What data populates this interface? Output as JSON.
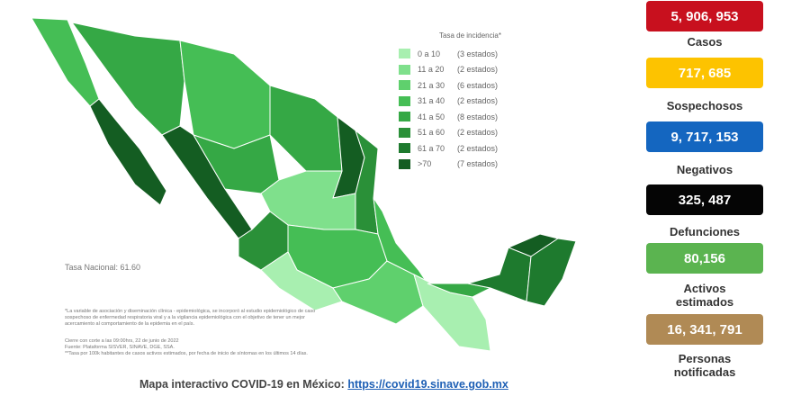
{
  "legend": {
    "title": "Tasa de incidencia*",
    "items": [
      {
        "range": "0 a 10",
        "count": "(3 estados)",
        "color": "#a8efb0"
      },
      {
        "range": "11 a 20",
        "count": "(2 estados)",
        "color": "#7fe08c"
      },
      {
        "range": "21 a 30",
        "count": "(6 estados)",
        "color": "#5fd06d"
      },
      {
        "range": "31 a 40",
        "count": "(2 estados)",
        "color": "#45be55"
      },
      {
        "range": "41 a 50",
        "count": "(8 estados)",
        "color": "#35a845"
      },
      {
        "range": "51 a 60",
        "count": "(2 estados)",
        "color": "#2a9038"
      },
      {
        "range": "61 a 70",
        "count": "(2 estados)",
        "color": "#1e7a2e"
      },
      {
        "range": ">70",
        "count": "(7 estados)",
        "color": "#145d22"
      }
    ]
  },
  "national_rate": "Tasa Nacional: 61.60",
  "notes": [
    "*La variable de asociación y diseminación clínica - epidemiológica, se incorporó al estudio epidemiológico de caso sospechoso de enfermedad respiratoria viral y a la vigilancia epidemiológica con el objetivo de tener un mejor acercamiento al comportamiento de la epidemia en el país.",
    "Cierre con corte a las 09:00hrs, 22 de junio de 2022",
    "Fuente: Plataforma SISVER, SINAVE, DGE, SSA.",
    "**Tasa por 100k habitantes de casos activos estimados, por fecha de inicio de síntomas en los últimos 14 días."
  ],
  "stats": [
    {
      "value": "5, 906, 953",
      "label": "Casos",
      "color": "#c8101e"
    },
    {
      "value": "717, 685",
      "label": "Sospechosos",
      "color": "#fdc300"
    },
    {
      "value": "9, 717, 153",
      "label": "Negativos",
      "color": "#1466c0"
    },
    {
      "value": "325, 487",
      "label": "Defunciones",
      "color": "#050505"
    },
    {
      "value": "80,156",
      "label": "Activos estimados",
      "color": "#5bb450"
    },
    {
      "value": "16, 341, 791",
      "label": "Personas notificadas",
      "color": "#b08a55"
    }
  ],
  "footer": {
    "text": "Mapa interactivo COVID-19 en México:",
    "link": "https://covid19.sinave.gob.mx"
  }
}
